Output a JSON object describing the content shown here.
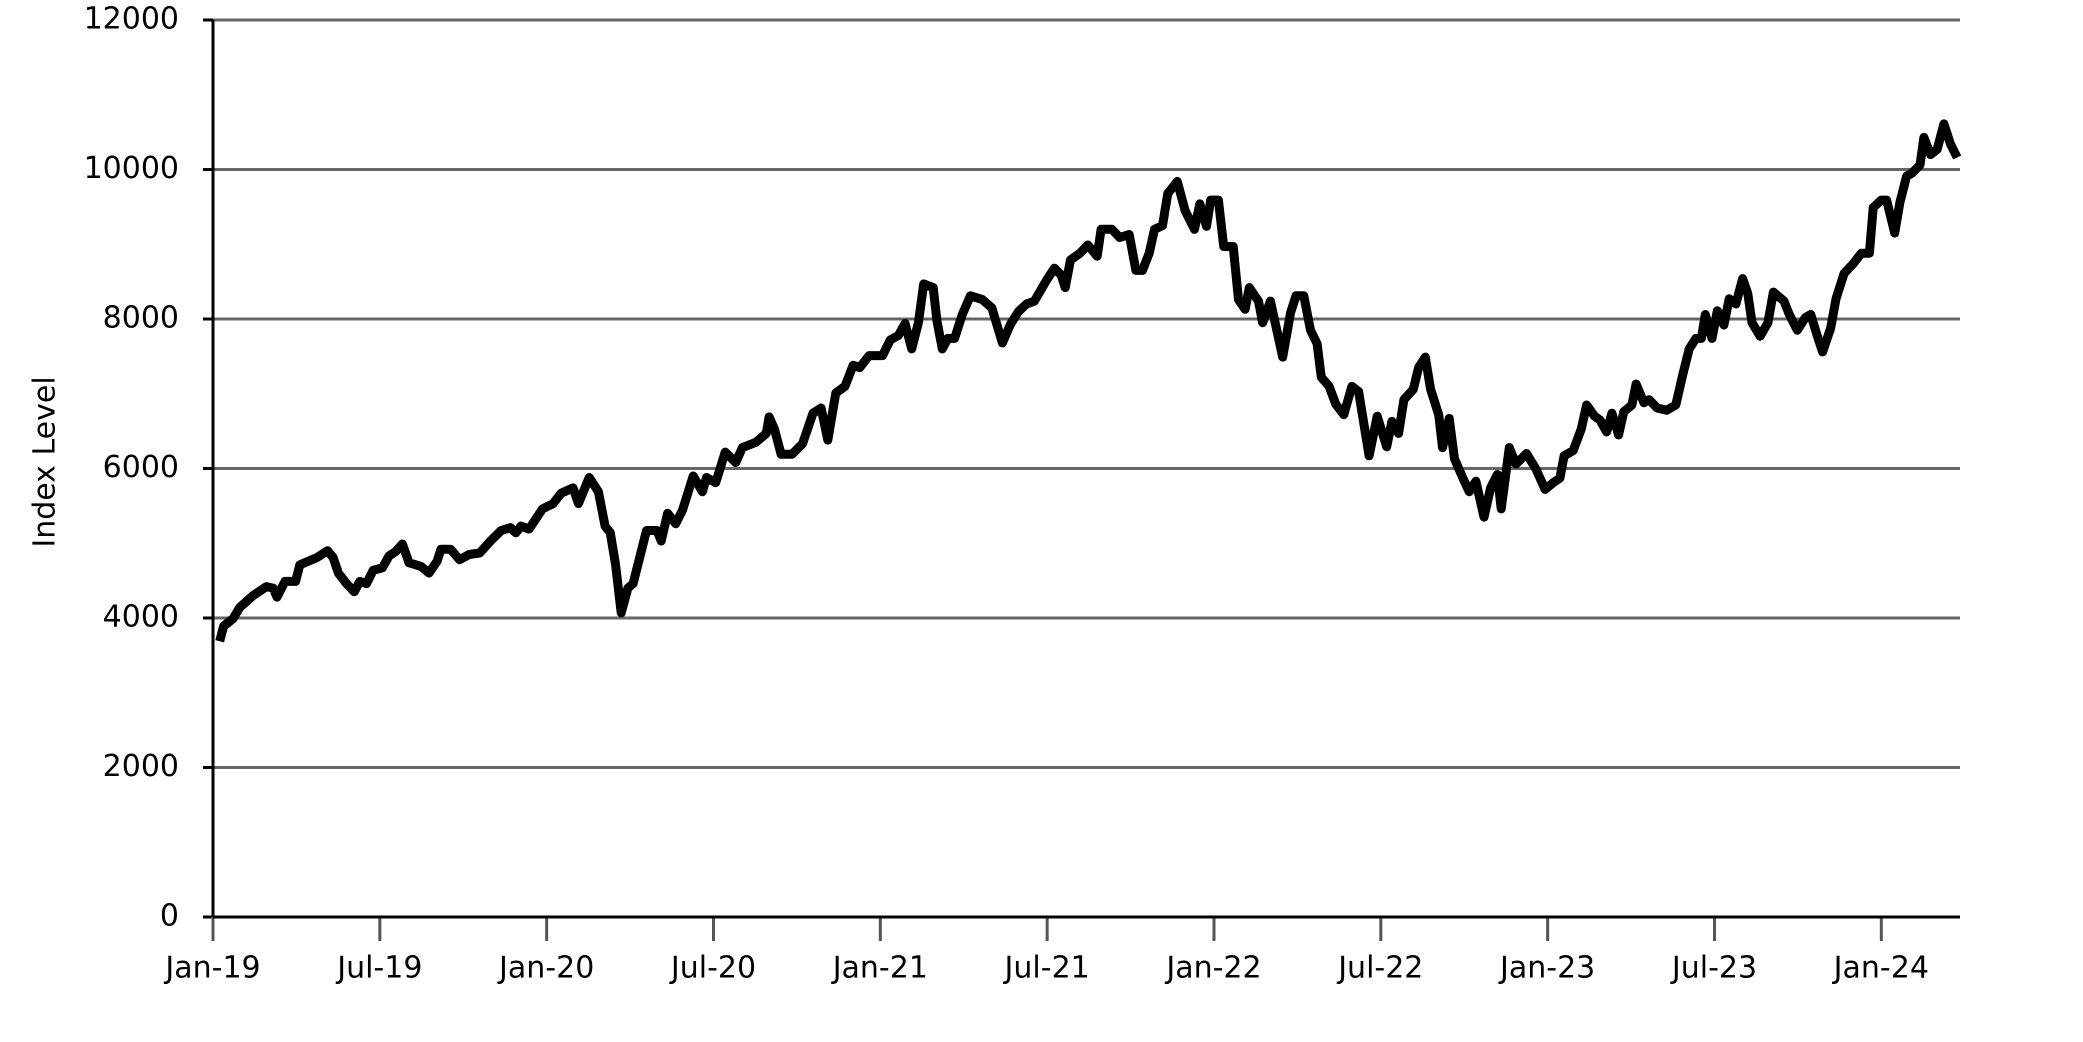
{
  "chart_data": {
    "type": "line",
    "y_label": "Index Level",
    "color": "#000000",
    "grid": true,
    "xlim": [
      0,
      62.83
    ],
    "xticks": [
      {
        "value": 0,
        "label": "Jan-19"
      },
      {
        "value": 6,
        "label": "Jul-19"
      },
      {
        "value": 12,
        "label": "Jan-20"
      },
      {
        "value": 18,
        "label": "Jul-20"
      },
      {
        "value": 24,
        "label": "Jan-21"
      },
      {
        "value": 30,
        "label": "Jul-21"
      },
      {
        "value": 36,
        "label": "Jan-22"
      },
      {
        "value": 42,
        "label": "Jul-22"
      },
      {
        "value": 48,
        "label": "Jan-23"
      },
      {
        "value": 54,
        "label": "Jul-23"
      },
      {
        "value": 60,
        "label": "Jan-24"
      }
    ],
    "ylim": [
      0,
      12000
    ],
    "yticks": [
      0,
      2000,
      4000,
      6000,
      8000,
      10000,
      12000
    ],
    "x": [
      0.24,
      0.38,
      0.72,
      0.96,
      1.44,
      1.92,
      2.16,
      2.3,
      2.59,
      2.97,
      3.12,
      3.74,
      4.12,
      4.32,
      4.51,
      4.8,
      5.08,
      5.28,
      5.52,
      5.76,
      6.09,
      6.33,
      6.57,
      6.81,
      7.05,
      7.48,
      7.77,
      8.06,
      8.2,
      8.54,
      8.87,
      9.21,
      9.59,
      9.98,
      10.36,
      10.7,
      10.89,
      11.08,
      11.37,
      11.85,
      12.23,
      12.52,
      12.95,
      13.14,
      13.53,
      13.86,
      14.1,
      14.29,
      14.48,
      14.68,
      14.92,
      15.11,
      15.59,
      15.97,
      16.12,
      16.35,
      16.64,
      16.88,
      17.27,
      17.6,
      17.75,
      18.08,
      18.42,
      18.8,
      19.04,
      19.52,
      19.9,
      20.0,
      20.19,
      20.43,
      20.82,
      21.2,
      21.58,
      21.87,
      22.11,
      22.4,
      22.73,
      23.02,
      23.26,
      23.6,
      24.08,
      24.36,
      24.65,
      24.89,
      25.13,
      25.37,
      25.56,
      25.9,
      26.04,
      26.23,
      26.43,
      26.67,
      26.95,
      27.24,
      27.67,
      28.01,
      28.39,
      28.68,
      28.97,
      29.26,
      29.54,
      29.98,
      30.26,
      30.5,
      30.65,
      30.84,
      31.18,
      31.46,
      31.8,
      31.94,
      32.33,
      32.61,
      32.95,
      33.19,
      33.43,
      33.67,
      33.86,
      34.15,
      34.34,
      34.68,
      34.96,
      35.3,
      35.49,
      35.73,
      35.88,
      36.16,
      36.35,
      36.69,
      36.88,
      37.12,
      37.27,
      37.6,
      37.75,
      38.03,
      38.47,
      38.75,
      38.95,
      39.23,
      39.47,
      39.71,
      39.86,
      40.14,
      40.38,
      40.67,
      40.96,
      41.2,
      41.58,
      41.87,
      42.21,
      42.4,
      42.64,
      42.83,
      43.17,
      43.36,
      43.6,
      43.79,
      44.08,
      44.22,
      44.46,
      44.65,
      44.94,
      45.18,
      45.42,
      45.71,
      45.95,
      46.19,
      46.33,
      46.62,
      46.86,
      47.24,
      47.58,
      47.91,
      48.2,
      48.44,
      48.59,
      48.92,
      49.21,
      49.4,
      49.69,
      49.88,
      50.12,
      50.31,
      50.55,
      50.74,
      51.03,
      51.18,
      51.46,
      51.65,
      51.94,
      52.28,
      52.61,
      52.85,
      53.09,
      53.33,
      53.53,
      53.67,
      53.91,
      54.1,
      54.34,
      54.53,
      54.77,
      55.01,
      55.2,
      55.35,
      55.64,
      55.92,
      56.12,
      56.5,
      56.69,
      56.98,
      57.27,
      57.46,
      57.7,
      57.89,
      58.18,
      58.37,
      58.66,
      58.99,
      59.28,
      59.57,
      59.71,
      60.0,
      60.19,
      60.48,
      60.67,
      60.91,
      61.1,
      61.39,
      61.53,
      61.77,
      62.01,
      62.25,
      62.49,
      62.73
    ],
    "values": [
      3690,
      3890,
      3990,
      4140,
      4300,
      4420,
      4400,
      4280,
      4490,
      4490,
      4710,
      4810,
      4900,
      4810,
      4600,
      4460,
      4350,
      4490,
      4460,
      4640,
      4670,
      4830,
      4890,
      4990,
      4740,
      4690,
      4600,
      4760,
      4920,
      4920,
      4780,
      4850,
      4870,
      5030,
      5170,
      5210,
      5140,
      5230,
      5190,
      5460,
      5530,
      5670,
      5740,
      5530,
      5880,
      5690,
      5230,
      5140,
      4710,
      4070,
      4400,
      4460,
      5170,
      5170,
      5030,
      5400,
      5260,
      5440,
      5900,
      5690,
      5880,
      5810,
      6220,
      6080,
      6280,
      6350,
      6470,
      6690,
      6530,
      6190,
      6190,
      6330,
      6740,
      6810,
      6380,
      7010,
      7100,
      7380,
      7350,
      7510,
      7510,
      7720,
      7780,
      7940,
      7600,
      7950,
      8470,
      8420,
      7970,
      7600,
      7740,
      7740,
      8060,
      8310,
      8260,
      8150,
      7680,
      7930,
      8100,
      8200,
      8240,
      8520,
      8680,
      8590,
      8420,
      8790,
      8880,
      8990,
      8840,
      9200,
      9200,
      9090,
      9130,
      8650,
      8650,
      8880,
      9200,
      9250,
      9680,
      9840,
      9450,
      9200,
      9540,
      9240,
      9590,
      9590,
      8970,
      8970,
      8260,
      8130,
      8420,
      8240,
      7950,
      8240,
      7490,
      8080,
      8310,
      8310,
      7850,
      7670,
      7220,
      7100,
      6860,
      6720,
      7100,
      7030,
      6170,
      6700,
      6290,
      6630,
      6470,
      6920,
      7060,
      7350,
      7490,
      7060,
      6720,
      6280,
      6670,
      6130,
      5880,
      5690,
      5830,
      5350,
      5740,
      5920,
      5460,
      6280,
      6060,
      6200,
      5990,
      5720,
      5810,
      5870,
      6170,
      6240,
      6530,
      6850,
      6700,
      6650,
      6490,
      6740,
      6450,
      6760,
      6850,
      7130,
      6880,
      6920,
      6810,
      6780,
      6850,
      7240,
      7600,
      7740,
      7740,
      8060,
      7740,
      8110,
      7920,
      8270,
      8200,
      8540,
      8340,
      7950,
      7770,
      7950,
      8360,
      8240,
      8060,
      7850,
      8020,
      8060,
      7770,
      7560,
      7880,
      8270,
      8610,
      8740,
      8880,
      8880,
      9490,
      9590,
      9590,
      9150,
      9560,
      9910,
      9950,
      10060,
      10430,
      10200,
      10270,
      10610,
      10340,
      10160
    ]
  }
}
